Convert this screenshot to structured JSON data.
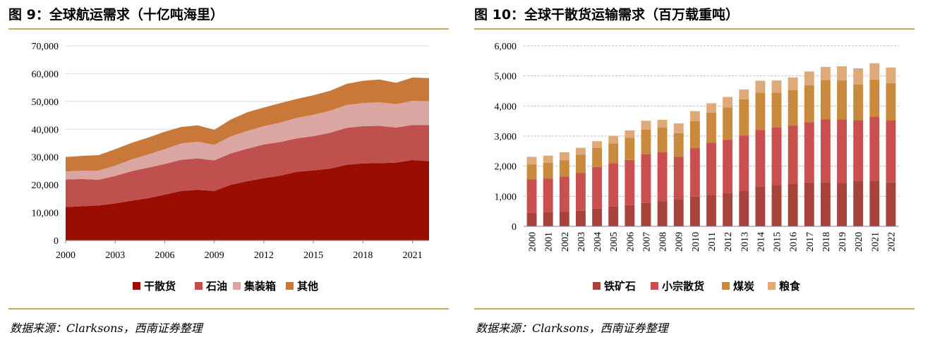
{
  "left": {
    "title": "图 9：全球航运需求（十亿吨海里）",
    "source": "数据来源：Clarksons，西南证券整理",
    "chart_data": {
      "type": "area",
      "stacked": true,
      "x": [
        2000,
        2001,
        2002,
        2003,
        2004,
        2005,
        2006,
        2007,
        2008,
        2009,
        2010,
        2011,
        2012,
        2013,
        2014,
        2015,
        2016,
        2017,
        2018,
        2019,
        2020,
        2021,
        2022
      ],
      "x_ticks": [
        "2000",
        "2003",
        "2006",
        "2009",
        "2012",
        "2015",
        "2018",
        "2021"
      ],
      "y_ticks": [
        "0",
        "10,000",
        "20,000",
        "30,000",
        "40,000",
        "50,000",
        "60,000",
        "70,000"
      ],
      "ylim": [
        0,
        70000
      ],
      "series": [
        {
          "name": "干散货",
          "color": "#9b0d00",
          "values": [
            12000,
            12300,
            12600,
            13300,
            14300,
            15200,
            16500,
            17800,
            18200,
            17800,
            20000,
            21300,
            22400,
            23300,
            24700,
            25200,
            25800,
            27200,
            27700,
            27800,
            28000,
            28900,
            28500
          ]
        },
        {
          "name": "石油",
          "color": "#c0504d",
          "values": [
            9900,
            9800,
            9200,
            9900,
            10600,
            11000,
            11000,
            11200,
            11300,
            11000,
            11300,
            11700,
            12100,
            12100,
            12000,
            12300,
            12900,
            13300,
            13400,
            13400,
            12600,
            12600,
            13000
          ]
        },
        {
          "name": "集装箱",
          "color": "#dba5a2",
          "values": [
            2900,
            3000,
            3300,
            3700,
            4200,
            4700,
            5300,
            5900,
            6000,
            5600,
            6100,
            6400,
            6600,
            7000,
            7400,
            7700,
            7900,
            8200,
            8300,
            8500,
            8400,
            8700,
            8600
          ]
        },
        {
          "name": "其他",
          "color": "#c87838",
          "values": [
            5200,
            5300,
            5600,
            5900,
            6000,
            6100,
            6300,
            5900,
            5900,
            5400,
            6100,
            6700,
            6700,
            7000,
            6800,
            7000,
            7200,
            7600,
            8000,
            8200,
            7700,
            8400,
            8300
          ]
        }
      ]
    }
  },
  "right": {
    "title": "图 10：全球干散货运输需求（百万载重吨）",
    "source": "数据来源：Clarksons，西南证券整理",
    "chart_data": {
      "type": "bar",
      "stacked": true,
      "categories": [
        "2000",
        "2001",
        "2002",
        "2003",
        "2004",
        "2005",
        "2006",
        "2007",
        "2008",
        "2009",
        "2010",
        "2011",
        "2012",
        "2013",
        "2014",
        "2015",
        "2016",
        "2017",
        "2018",
        "2019",
        "2020",
        "2021",
        "2022"
      ],
      "y_ticks": [
        "0",
        "1,000",
        "2,000",
        "3,000",
        "4,000",
        "5,000",
        "6,000"
      ],
      "ylim": [
        0,
        6000
      ],
      "series": [
        {
          "name": "铁矿石",
          "color": "#a8433b",
          "values": [
            450,
            470,
            480,
            520,
            590,
            660,
            710,
            780,
            840,
            900,
            990,
            1050,
            1100,
            1190,
            1330,
            1360,
            1420,
            1460,
            1470,
            1450,
            1510,
            1520,
            1460
          ]
        },
        {
          "name": "小宗散货",
          "color": "#c9504f",
          "values": [
            1110,
            1120,
            1180,
            1250,
            1380,
            1440,
            1500,
            1620,
            1620,
            1410,
            1610,
            1730,
            1780,
            1830,
            1870,
            1930,
            1930,
            2000,
            2090,
            2100,
            2020,
            2130,
            2070
          ]
        },
        {
          "name": "煤炭",
          "color": "#c98a3e",
          "values": [
            500,
            520,
            540,
            610,
            640,
            660,
            730,
            810,
            820,
            790,
            900,
            1000,
            1070,
            1200,
            1240,
            1150,
            1180,
            1230,
            1300,
            1300,
            1180,
            1230,
            1230
          ]
        },
        {
          "name": "粮食",
          "color": "#deaa7a",
          "values": [
            250,
            240,
            260,
            230,
            220,
            250,
            250,
            300,
            260,
            320,
            330,
            310,
            350,
            330,
            400,
            410,
            420,
            460,
            440,
            470,
            540,
            540,
            520
          ]
        }
      ]
    }
  }
}
